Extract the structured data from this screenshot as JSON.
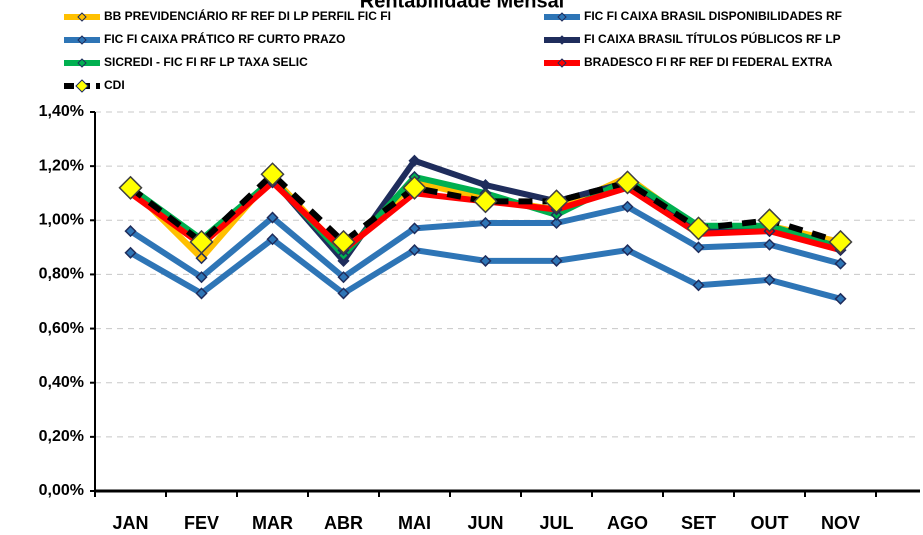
{
  "chart_data": {
    "type": "line",
    "title": "Rentabilidade Mensal",
    "categories": [
      "JAN",
      "FEV",
      "MAR",
      "ABR",
      "MAI",
      "JUN",
      "JUL",
      "AGO",
      "SET",
      "OUT",
      "NOV"
    ],
    "series": [
      {
        "name": "BB PREVIDENCIÁRIO RF REF DI LP PERFIL FIC FI",
        "color": "#ffc000",
        "values": [
          1.12,
          0.86,
          1.16,
          0.88,
          1.14,
          1.08,
          1.04,
          1.16,
          0.97,
          0.98,
          0.92
        ]
      },
      {
        "name": "FIC FI CAIXA BRASIL DISPONIBILIDADES RF",
        "color": "#2e75b6",
        "values": [
          0.88,
          0.73,
          0.93,
          0.73,
          0.89,
          0.85,
          0.85,
          0.89,
          0.76,
          0.78,
          0.71
        ]
      },
      {
        "name": "FIC FI CAIXA PRÁTICO RF CURTO PRAZO",
        "color": "#2e75b6",
        "values": [
          0.96,
          0.79,
          1.01,
          0.79,
          0.97,
          0.99,
          0.99,
          1.05,
          0.9,
          0.91,
          0.84
        ]
      },
      {
        "name": "FI CAIXA BRASIL TÍTULOS PÚBLICOS RF LP",
        "color": "#1f2d5c",
        "values": [
          1.11,
          0.92,
          1.15,
          0.85,
          1.22,
          1.13,
          1.07,
          1.14,
          0.96,
          0.96,
          0.9
        ]
      },
      {
        "name": "SICREDI - FIC FI RF LP TAXA SELIC",
        "color": "#00b050",
        "values": [
          1.12,
          0.93,
          1.15,
          0.87,
          1.16,
          1.1,
          1.02,
          1.15,
          0.98,
          0.98,
          0.9
        ]
      },
      {
        "name": "BRADESCO FI RF REF DI FEDERAL EXTRA",
        "color": "#ff0000",
        "values": [
          1.1,
          0.91,
          1.14,
          0.89,
          1.1,
          1.07,
          1.04,
          1.12,
          0.95,
          0.96,
          0.89
        ]
      },
      {
        "name": "CDI",
        "color": "#000000",
        "dashed": true,
        "marker_color": "#ffff00",
        "values": [
          1.12,
          0.92,
          1.17,
          0.92,
          1.12,
          1.07,
          1.07,
          1.14,
          0.97,
          1.0,
          0.92
        ]
      }
    ],
    "ylim": [
      0,
      1.4
    ],
    "yticks": [
      {
        "value": 0,
        "label": "0,00%"
      },
      {
        "value": 0.2,
        "label": "0,20%"
      },
      {
        "value": 0.4,
        "label": "0,40%"
      },
      {
        "value": 0.6,
        "label": "0,60%"
      },
      {
        "value": 0.8,
        "label": "0,80%"
      },
      {
        "value": 1.0,
        "label": "1,00%"
      },
      {
        "value": 1.2,
        "label": "1,20%"
      },
      {
        "value": 1.4,
        "label": "1,40%"
      }
    ],
    "grid": true,
    "legend": "top"
  }
}
